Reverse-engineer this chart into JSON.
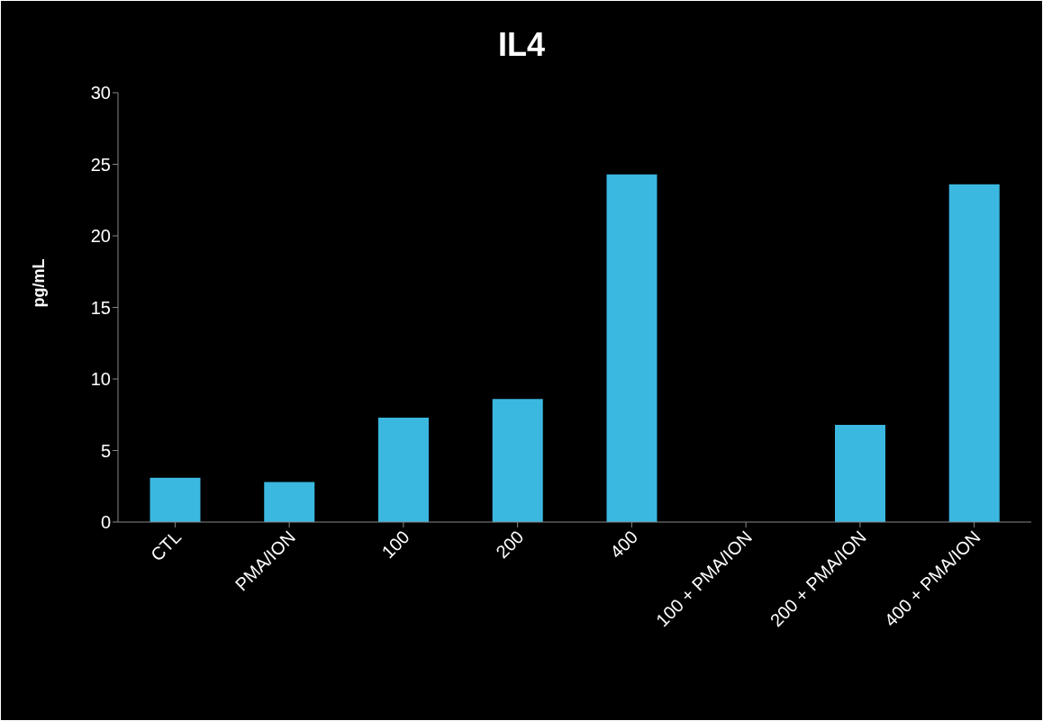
{
  "chart_data": {
    "type": "bar",
    "title": "IL4",
    "ylabel": "pg/mL",
    "categories": [
      "CTL",
      "PMA/ION",
      "100",
      "200",
      "400",
      "100 + PMA/ION",
      "200 + PMA/ION",
      "400 + PMA/ION"
    ],
    "values": [
      3.1,
      2.8,
      7.3,
      8.6,
      24.3,
      0,
      6.8,
      23.6
    ],
    "color": "#3bb8e0",
    "ylim": [
      0,
      30
    ],
    "yticks": [
      0,
      5,
      10,
      15,
      20,
      25,
      30
    ],
    "grid": false,
    "legend": false
  }
}
